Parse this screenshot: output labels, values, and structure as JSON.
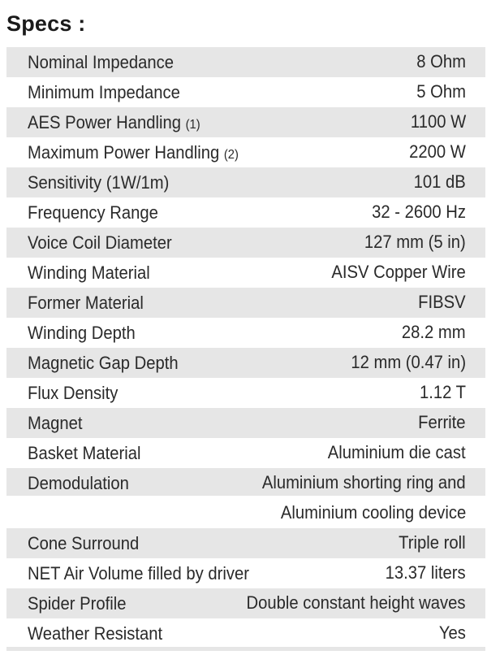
{
  "title": "Specs :",
  "rows": [
    {
      "label": "Nominal Impedance",
      "note": "",
      "value": "8 Ohm",
      "value2": ""
    },
    {
      "label": "Minimum Impedance",
      "note": "",
      "value": "5 Ohm",
      "value2": ""
    },
    {
      "label": "AES Power Handling",
      "note": "(1)",
      "value": "1100 W",
      "value2": ""
    },
    {
      "label": "Maximum Power Handling",
      "note": "(2)",
      "value": "2200 W",
      "value2": ""
    },
    {
      "label": "Sensitivity (1W/1m)",
      "note": "",
      "value": "101 dB",
      "value2": ""
    },
    {
      "label": "Frequency Range",
      "note": "",
      "value": "32 - 2600 Hz",
      "value2": ""
    },
    {
      "label": "Voice Coil Diameter",
      "note": "",
      "value": "127 mm (5 in)",
      "value2": ""
    },
    {
      "label": "Winding Material",
      "note": "",
      "value": "AISV Copper Wire",
      "value2": ""
    },
    {
      "label": "Former Material",
      "note": "",
      "value": "FIBSV",
      "value2": ""
    },
    {
      "label": "Winding Depth",
      "note": "",
      "value": "28.2 mm",
      "value2": ""
    },
    {
      "label": "Magnetic Gap Depth",
      "note": "",
      "value": "12 mm (0.47 in)",
      "value2": ""
    },
    {
      "label": "Flux Density",
      "note": "",
      "value": "1.12 T",
      "value2": ""
    },
    {
      "label": "Magnet",
      "note": "",
      "value": "Ferrite",
      "value2": ""
    },
    {
      "label": "Basket Material",
      "note": "",
      "value": "Aluminium die cast",
      "value2": ""
    },
    {
      "label": "Demodulation",
      "note": "",
      "value": "Aluminium shorting ring and",
      "value2": "Aluminium cooling device"
    },
    {
      "label": "Cone Surround",
      "note": "",
      "value": "Triple roll",
      "value2": ""
    },
    {
      "label": "NET Air Volume filled by driver",
      "note": "",
      "value": "13.37 liters",
      "value2": ""
    },
    {
      "label": "Spider Profile",
      "note": "",
      "value": "Double constant height waves",
      "value2": ""
    },
    {
      "label": "Weather Resistant",
      "note": "",
      "value": "Yes",
      "value2": ""
    }
  ]
}
